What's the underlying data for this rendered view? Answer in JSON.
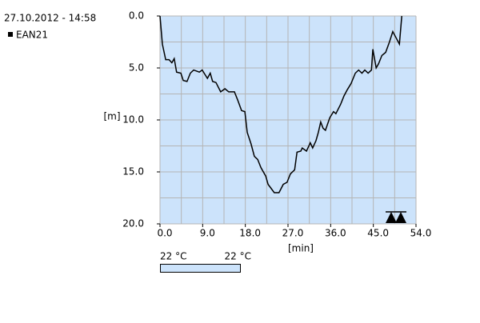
{
  "header": "27.10.2012 - 14:58",
  "temperature": {
    "left": "22 °C",
    "right": "22 °C"
  },
  "chart_data": {
    "type": "line",
    "xlabel": "[min]",
    "ylabel": "[m]",
    "xlim": [
      0,
      54
    ],
    "ylim": [
      0,
      20
    ],
    "y_inverted": true,
    "xticks": [
      {
        "value": 0,
        "label": "0.0"
      },
      {
        "value": 9,
        "label": "9.0"
      },
      {
        "value": 18,
        "label": "18.0"
      },
      {
        "value": 27,
        "label": "27.0"
      },
      {
        "value": 36,
        "label": "36.0"
      },
      {
        "value": 45,
        "label": "45.0"
      },
      {
        "value": 54,
        "label": "54.0"
      }
    ],
    "yticks": [
      {
        "value": 0,
        "label": "0.0"
      },
      {
        "value": 5,
        "label": "5.0"
      },
      {
        "value": 10,
        "label": "10.0"
      },
      {
        "value": 15,
        "label": "15.0"
      },
      {
        "value": 20,
        "label": "20.0"
      }
    ],
    "xgrid": [
      0,
      4.5,
      9,
      13.5,
      18,
      22.5,
      27,
      31.5,
      36,
      40.5,
      45,
      49.5,
      54
    ],
    "ygrid": [
      0,
      2.5,
      5,
      7.5,
      10,
      12.5,
      15,
      17.5,
      20
    ],
    "grid": true,
    "series": [
      {
        "name": "EAN21",
        "color": "#000000",
        "x": [
          0,
          0.5,
          1.2,
          1.9,
          2.5,
          3.0,
          3.5,
          4.4,
          4.9,
          5.7,
          6.4,
          7.1,
          8.3,
          8.9,
          10.0,
          10.6,
          11.1,
          11.8,
          12.8,
          13.7,
          14.5,
          15.7,
          16.4,
          17.2,
          17.9,
          18.4,
          19.2,
          19.9,
          20.6,
          21.3,
          22.3,
          22.8,
          23.3,
          24.1,
          25.1,
          26.0,
          26.8,
          27.5,
          28.4,
          28.9,
          29.7,
          30.0,
          30.9,
          31.7,
          32.2,
          32.9,
          33.4,
          33.9,
          34.4,
          34.9,
          35.8,
          36.6,
          37.1,
          38.1,
          38.8,
          39.5,
          40.3,
          41.2,
          41.9,
          42.6,
          43.2,
          43.9,
          44.6,
          44.9,
          45.6,
          46.1,
          46.8,
          47.6,
          48.4,
          49.1,
          49.8,
          50.5,
          51.0
        ],
        "values": [
          0,
          2.7,
          4.2,
          4.2,
          4.5,
          4.1,
          5.4,
          5.5,
          6.2,
          6.3,
          5.5,
          5.2,
          5.4,
          5.2,
          6.0,
          5.5,
          6.3,
          6.4,
          7.3,
          7.0,
          7.3,
          7.3,
          8.1,
          9.1,
          9.2,
          11.2,
          12.3,
          13.5,
          13.8,
          14.6,
          15.4,
          16.2,
          16.5,
          17.0,
          17.0,
          16.2,
          16.0,
          15.2,
          14.8,
          13.1,
          13.0,
          12.7,
          13.0,
          12.2,
          12.7,
          12.0,
          11.2,
          10.2,
          10.8,
          11.0,
          9.8,
          9.2,
          9.4,
          8.5,
          7.7,
          7.1,
          6.5,
          5.5,
          5.2,
          5.5,
          5.2,
          5.5,
          5.2,
          3.2,
          5.0,
          4.6,
          3.8,
          3.5,
          2.5,
          1.5,
          2.1,
          2.7,
          0
        ]
      }
    ]
  }
}
